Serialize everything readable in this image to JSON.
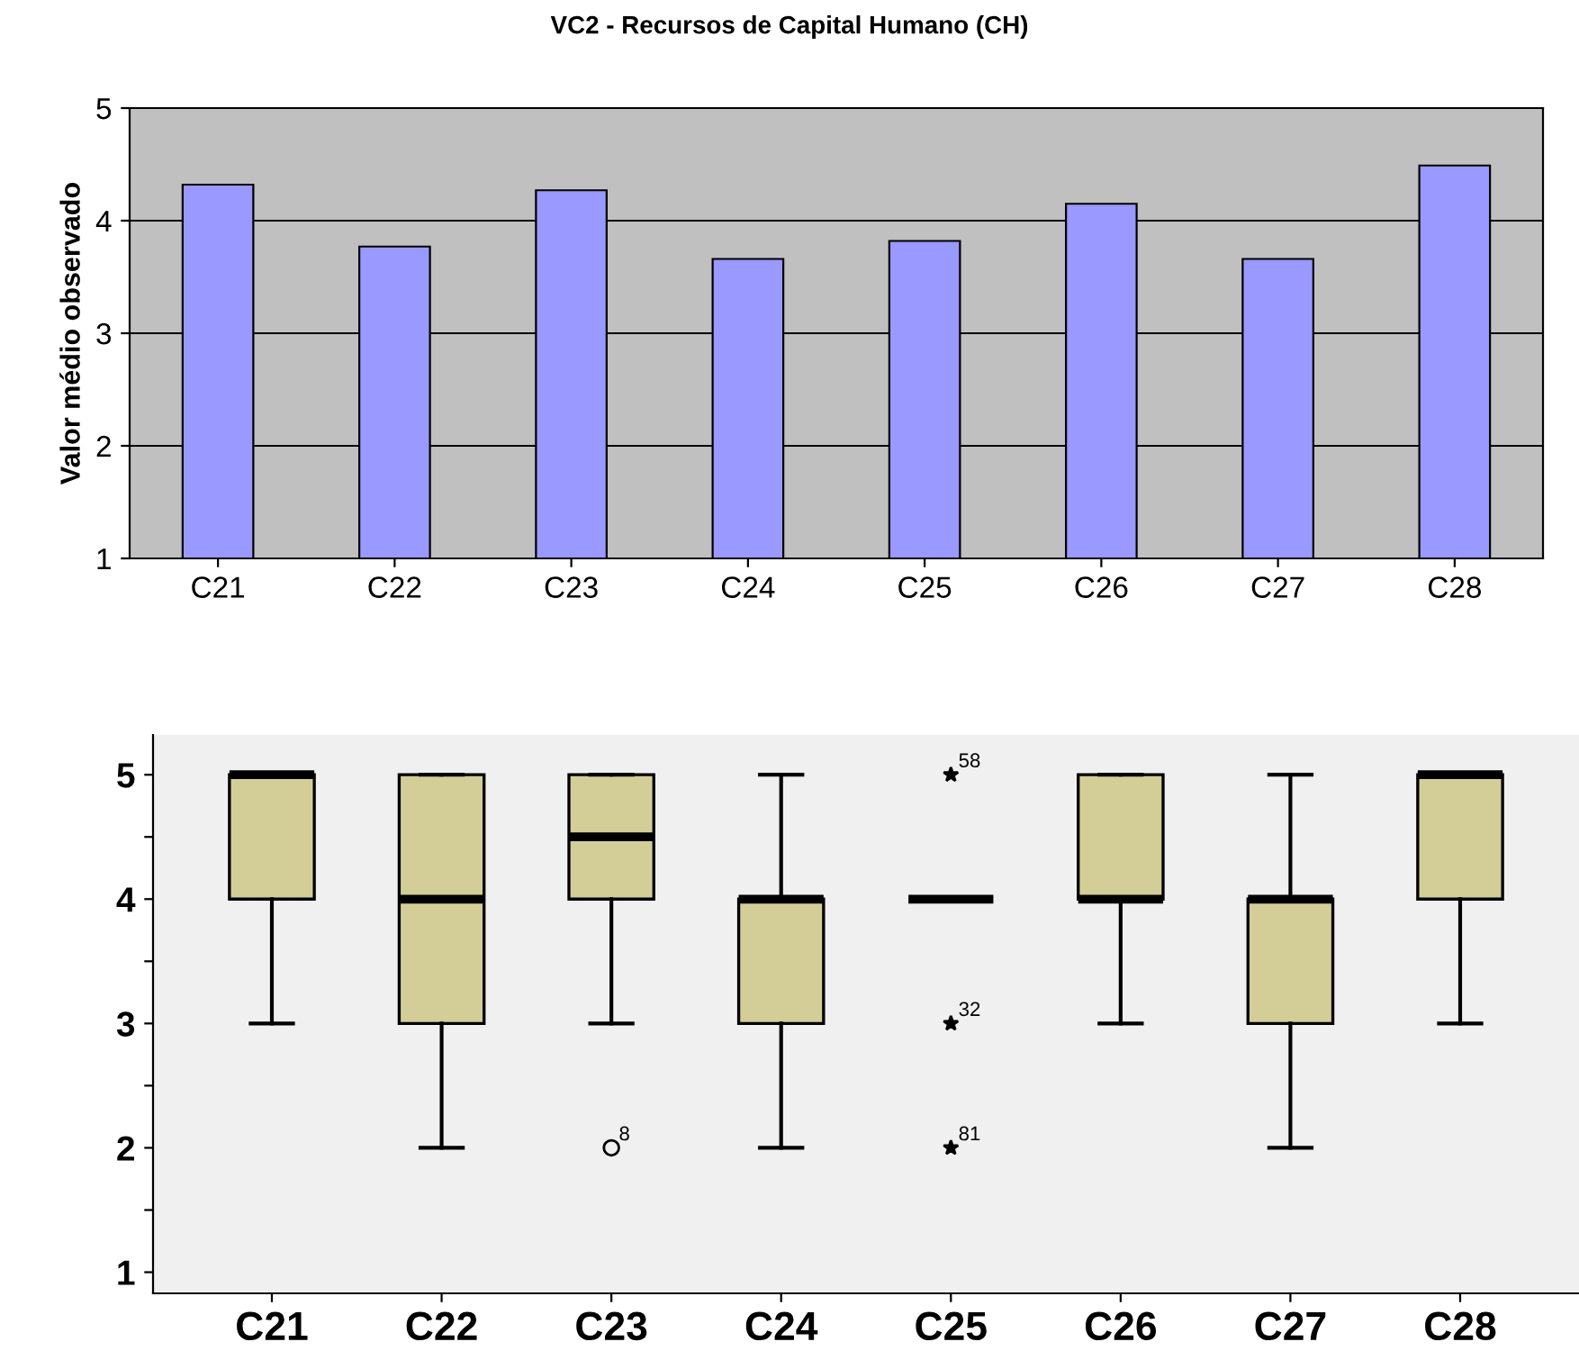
{
  "chart_data": [
    {
      "type": "bar",
      "title": "VC2 - Recursos de Capital Humano (CH)",
      "ylabel": "Valor médio observado",
      "categories": [
        "C21",
        "C22",
        "C23",
        "C24",
        "C25",
        "C26",
        "C27",
        "C28"
      ],
      "values": [
        4.32,
        3.77,
        4.27,
        3.66,
        3.82,
        4.15,
        3.66,
        4.49
      ],
      "color": "#9999ff",
      "ylim": [
        1,
        5
      ],
      "yticks": [
        1,
        2,
        3,
        4,
        5
      ],
      "grid": "y"
    },
    {
      "type": "box",
      "categories": [
        "C21",
        "C22",
        "C23",
        "C24",
        "C25",
        "C26",
        "C27",
        "C28"
      ],
      "colors": [
        "#d3ce97",
        "#d3ce97",
        "#d3ce97",
        "#d3ce97",
        null,
        "#d3ce97",
        "#d3ce97",
        "#d3ce97"
      ],
      "boxes": [
        {
          "low": 3,
          "q1": 4,
          "median": 5,
          "q3": 5,
          "high": 5
        },
        {
          "low": 2,
          "q1": 3,
          "median": 4,
          "q3": 5,
          "high": 5
        },
        {
          "low": 3,
          "q1": 4,
          "median": 4.5,
          "q3": 5,
          "high": 5,
          "outliers": [
            2
          ]
        },
        {
          "low": 2,
          "q1": 3,
          "median": 4,
          "q3": 4,
          "high": 5
        },
        {
          "low": 4,
          "q1": 4,
          "median": 4,
          "q3": 4,
          "high": 4,
          "outliers": [
            5,
            3,
            2
          ]
        },
        {
          "low": 3,
          "q1": 4,
          "median": 4,
          "q3": 5,
          "high": 5
        },
        {
          "low": 2,
          "q1": 3,
          "median": 4,
          "q3": 4,
          "high": 5
        },
        {
          "low": 3,
          "q1": 4,
          "median": 5,
          "q3": 5,
          "high": 5
        }
      ],
      "annotations": [
        "8",
        "58",
        "32",
        "81"
      ],
      "ylim": [
        0.83,
        5.32
      ],
      "yticks": [
        1,
        {
          "value": 1.5,
          "label": null
        },
        2,
        {
          "value": 2.5,
          "label": null
        },
        3,
        {
          "value": 3.5,
          "label": null
        },
        4,
        {
          "value": 4.5,
          "label": null
        },
        5
      ],
      "grid": false
    }
  ]
}
